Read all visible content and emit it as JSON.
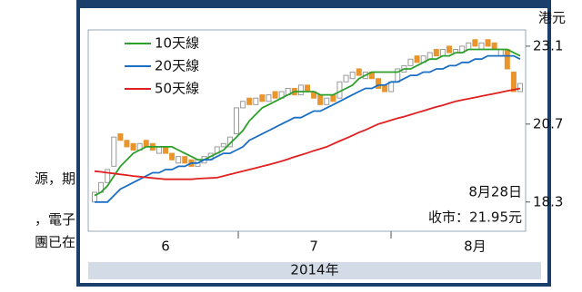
{
  "side_text": [
    "源，期",
    "，電子",
    "團已在"
  ],
  "chart_data": {
    "type": "candlestick",
    "unit_label": "港元",
    "year_label": "2014年",
    "annotations": [
      "8月28日",
      "收市：21.95元"
    ],
    "categories": [
      null,
      null,
      null,
      null,
      null,
      null,
      null,
      null,
      null,
      null,
      null,
      "6",
      null,
      null,
      null,
      null,
      null,
      null,
      null,
      null,
      null,
      null,
      null,
      null,
      null,
      null,
      null,
      null,
      null,
      null,
      null,
      null,
      null,
      null,
      "7",
      null,
      null,
      null,
      null,
      null,
      null,
      null,
      null,
      null,
      null,
      null,
      null,
      null,
      null,
      null,
      null,
      null,
      null,
      null,
      null,
      null,
      null,
      null,
      null,
      "8月",
      null,
      null,
      null,
      null,
      null,
      null,
      null
    ],
    "open": [
      18.3,
      18.6,
      18.9,
      19.4,
      20.4,
      20.2,
      20.1,
      19.9,
      20.2,
      20.1,
      19.8,
      20.0,
      19.8,
      19.5,
      19.7,
      19.6,
      19.4,
      19.5,
      19.6,
      19.8,
      20.0,
      20.0,
      20.4,
      21.2,
      21.5,
      21.3,
      21.6,
      21.4,
      21.7,
      21.5,
      21.6,
      21.8,
      21.6,
      21.9,
      21.7,
      21.6,
      21.3,
      21.6,
      21.5,
      22.0,
      22.1,
      22.4,
      22.1,
      22.3,
      22.1,
      21.9,
      21.7,
      22.0,
      22.3,
      22.5,
      22.8,
      22.6,
      22.7,
      23.0,
      22.8,
      23.1,
      22.9,
      22.9,
      23.0,
      23.3,
      23.0,
      23.3,
      23.2,
      22.8,
      23.0,
      22.3,
      21.7
    ],
    "close": [
      18.6,
      18.9,
      19.3,
      20.3,
      20.2,
      20.0,
      19.9,
      20.1,
      20.0,
      19.9,
      20.0,
      19.8,
      19.6,
      19.7,
      19.5,
      19.4,
      19.6,
      19.7,
      19.8,
      20.0,
      20.1,
      20.3,
      21.2,
      21.4,
      21.3,
      21.5,
      21.4,
      21.6,
      21.5,
      21.7,
      21.8,
      21.6,
      21.9,
      21.7,
      21.5,
      21.3,
      21.5,
      21.4,
      22.0,
      22.2,
      22.3,
      22.2,
      22.3,
      22.1,
      21.8,
      21.7,
      22.0,
      22.4,
      22.5,
      22.7,
      22.6,
      22.8,
      22.9,
      22.8,
      23.0,
      22.9,
      23.0,
      23.1,
      23.2,
      23.1,
      23.2,
      23.1,
      23.0,
      23.0,
      22.4,
      21.7,
      21.95
    ],
    "up_color": "#ffffff",
    "down_color": "#e8952e",
    "series": [
      {
        "name": "10天線",
        "color": "#2ca02c",
        "values": [
          18.5,
          18.6,
          18.8,
          19.1,
          19.4,
          19.6,
          19.8,
          19.9,
          20.0,
          20.0,
          20.0,
          20.0,
          20.0,
          19.9,
          19.8,
          19.7,
          19.6,
          19.6,
          19.7,
          19.8,
          19.9,
          20.1,
          20.3,
          20.5,
          20.8,
          21.0,
          21.2,
          21.3,
          21.4,
          21.5,
          21.6,
          21.7,
          21.7,
          21.7,
          21.7,
          21.6,
          21.6,
          21.6,
          21.7,
          21.8,
          21.9,
          22.1,
          22.2,
          22.3,
          22.3,
          22.3,
          22.3,
          22.3,
          22.4,
          22.4,
          22.5,
          22.6,
          22.7,
          22.7,
          22.8,
          22.8,
          22.9,
          22.9,
          23.0,
          23.0,
          23.0,
          23.0,
          23.0,
          23.0,
          23.0,
          22.9,
          22.8
        ]
      },
      {
        "name": "20天線",
        "color": "#1a6fc4",
        "values": [
          18.3,
          18.3,
          18.3,
          18.5,
          18.7,
          18.8,
          18.9,
          19.0,
          19.1,
          19.2,
          19.2,
          19.3,
          19.3,
          19.4,
          19.4,
          19.5,
          19.5,
          19.6,
          19.6,
          19.7,
          19.8,
          19.8,
          19.9,
          20.0,
          20.2,
          20.3,
          20.4,
          20.5,
          20.6,
          20.7,
          20.8,
          20.9,
          20.9,
          21.0,
          21.1,
          21.1,
          21.2,
          21.3,
          21.4,
          21.5,
          21.6,
          21.7,
          21.8,
          21.8,
          21.9,
          21.9,
          22.0,
          22.0,
          22.1,
          22.2,
          22.2,
          22.3,
          22.3,
          22.4,
          22.4,
          22.5,
          22.5,
          22.6,
          22.6,
          22.7,
          22.7,
          22.8,
          22.8,
          22.8,
          22.8,
          22.8,
          22.7
        ]
      },
      {
        "name": "50天線",
        "color": "#e02020",
        "values": [
          19.25,
          19.23,
          19.2,
          19.18,
          19.15,
          19.13,
          19.1,
          19.08,
          19.06,
          19.04,
          19.02,
          19.0,
          19.0,
          19.0,
          19.0,
          19.0,
          19.02,
          19.03,
          19.04,
          19.05,
          19.1,
          19.15,
          19.2,
          19.25,
          19.3,
          19.35,
          19.4,
          19.45,
          19.5,
          19.56,
          19.62,
          19.69,
          19.75,
          19.81,
          19.88,
          19.94,
          20.0,
          20.09,
          20.18,
          20.26,
          20.35,
          20.44,
          20.52,
          20.61,
          20.7,
          20.76,
          20.82,
          20.88,
          20.93,
          20.99,
          21.05,
          21.11,
          21.17,
          21.23,
          21.28,
          21.34,
          21.4,
          21.44,
          21.48,
          21.52,
          21.56,
          21.6,
          21.64,
          21.68,
          21.72,
          21.76,
          21.8
        ]
      }
    ],
    "ylim": [
      17.4,
      23.6
    ],
    "yticks": [
      18.3,
      20.7,
      23.1
    ]
  }
}
